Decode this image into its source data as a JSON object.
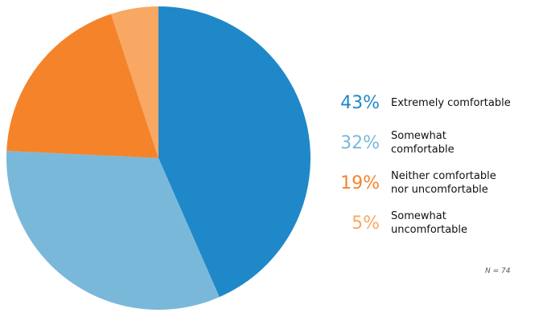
{
  "chart_data": {
    "type": "pie",
    "categories": [
      "Extremely comfortable",
      "Somewhat comfortable",
      "Neither comfortable nor uncomfortable",
      "Somewhat uncomfortable"
    ],
    "values": [
      43,
      32,
      19,
      5
    ],
    "value_labels": [
      "43%",
      "32%",
      "19%",
      "5%"
    ],
    "colors": [
      "#1f88c9",
      "#7ab8da",
      "#f5832a",
      "#f8a863"
    ],
    "note": "N = 74"
  }
}
